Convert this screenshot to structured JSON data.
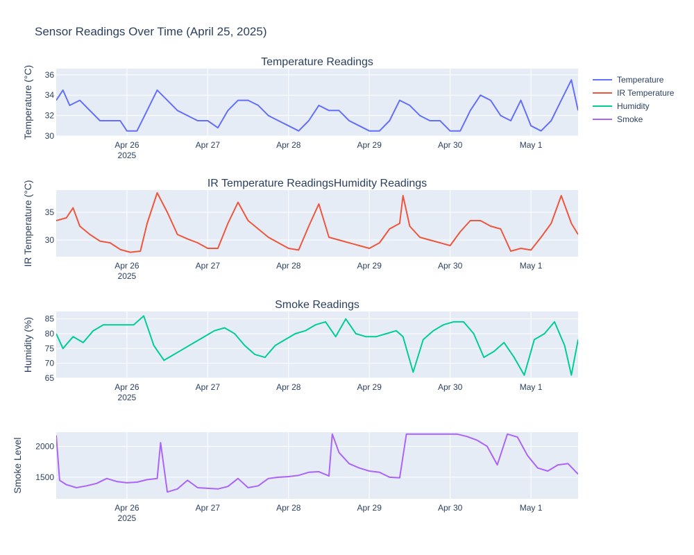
{
  "title": "Sensor Readings Over Time (April 25, 2025)",
  "chart_data": [
    {
      "type": "line",
      "subplot_title": "Temperature Readings",
      "ylabel": "Temperature (°C)",
      "xlabel": "",
      "xlim": [
        "2025-04-25 03:00",
        "2025-05-01 14:00"
      ],
      "ylim": [
        30,
        36.6
      ],
      "yticks": [
        30,
        32,
        34,
        36
      ],
      "xticks": [
        "Apr 26\n2025",
        "Apr 27",
        "Apr 28",
        "Apr 29",
        "Apr 30",
        "May 1"
      ],
      "grid": true,
      "series": [
        {
          "name": "Temperature",
          "color": "#636efa",
          "x": [
            "2025-04-25 03:00",
            "2025-04-25 05:00",
            "2025-04-25 07:00",
            "2025-04-25 10:00",
            "2025-04-25 13:00",
            "2025-04-25 16:00",
            "2025-04-25 19:00",
            "2025-04-25 22:00",
            "2025-04-26 00:00",
            "2025-04-26 03:00",
            "2025-04-26 06:00",
            "2025-04-26 09:00",
            "2025-04-26 12:00",
            "2025-04-26 15:00",
            "2025-04-26 18:00",
            "2025-04-26 21:00",
            "2025-04-27 00:00",
            "2025-04-27 03:00",
            "2025-04-27 06:00",
            "2025-04-27 09:00",
            "2025-04-27 12:00",
            "2025-04-27 15:00",
            "2025-04-27 18:00",
            "2025-04-27 21:00",
            "2025-04-28 00:00",
            "2025-04-28 03:00",
            "2025-04-28 06:00",
            "2025-04-28 09:00",
            "2025-04-28 12:00",
            "2025-04-28 15:00",
            "2025-04-28 18:00",
            "2025-04-28 21:00",
            "2025-04-29 00:00",
            "2025-04-29 03:00",
            "2025-04-29 06:00",
            "2025-04-29 09:00",
            "2025-04-29 12:00",
            "2025-04-29 15:00",
            "2025-04-29 18:00",
            "2025-04-29 21:00",
            "2025-04-30 00:00",
            "2025-04-30 03:00",
            "2025-04-30 06:00",
            "2025-04-30 09:00",
            "2025-04-30 12:00",
            "2025-04-30 15:00",
            "2025-04-30 18:00",
            "2025-04-30 21:00",
            "2025-05-01 00:00",
            "2025-05-01 03:00",
            "2025-05-01 06:00",
            "2025-05-01 09:00",
            "2025-05-01 12:00",
            "2025-05-01 14:00"
          ],
          "y": [
            33.5,
            34.5,
            33.0,
            33.5,
            32.5,
            31.5,
            31.5,
            31.5,
            30.5,
            30.5,
            32.5,
            34.5,
            33.5,
            32.5,
            32.0,
            31.5,
            31.5,
            30.8,
            32.5,
            33.5,
            33.5,
            33.0,
            32.0,
            31.5,
            31.0,
            30.5,
            31.5,
            33.0,
            32.5,
            32.5,
            31.5,
            31.0,
            30.5,
            30.5,
            31.5,
            33.5,
            33.0,
            32.0,
            31.5,
            31.5,
            30.5,
            30.5,
            32.5,
            34.0,
            33.5,
            32.0,
            31.5,
            33.5,
            31.0,
            30.5,
            31.5,
            33.5,
            35.5,
            32.5
          ]
        }
      ]
    },
    {
      "type": "line",
      "subplot_title": "IR Temperature ReadingsHumidity Readings",
      "ylabel": "IR Temperature (°C)",
      "xlabel": "",
      "xlim": [
        "2025-04-25 03:00",
        "2025-05-01 14:00"
      ],
      "ylim": [
        27,
        39
      ],
      "yticks": [
        30,
        35
      ],
      "xticks": [
        "Apr 26\n2025",
        "Apr 27",
        "Apr 28",
        "Apr 29",
        "Apr 30",
        "May 1"
      ],
      "grid": true,
      "series": [
        {
          "name": "IR Temperature",
          "color": "#ef553b",
          "x": [
            "2025-04-25 03:00",
            "2025-04-25 06:00",
            "2025-04-25 08:00",
            "2025-04-25 10:00",
            "2025-04-25 13:00",
            "2025-04-25 16:00",
            "2025-04-25 19:00",
            "2025-04-25 22:00",
            "2025-04-26 01:00",
            "2025-04-26 04:00",
            "2025-04-26 06:00",
            "2025-04-26 09:00",
            "2025-04-26 12:00",
            "2025-04-26 15:00",
            "2025-04-26 18:00",
            "2025-04-26 21:00",
            "2025-04-27 00:00",
            "2025-04-27 03:00",
            "2025-04-27 06:00",
            "2025-04-27 09:00",
            "2025-04-27 12:00",
            "2025-04-27 15:00",
            "2025-04-27 18:00",
            "2025-04-27 21:00",
            "2025-04-28 00:00",
            "2025-04-28 03:00",
            "2025-04-28 06:00",
            "2025-04-28 09:00",
            "2025-04-28 12:00",
            "2025-04-28 15:00",
            "2025-04-28 18:00",
            "2025-04-28 21:00",
            "2025-04-29 00:00",
            "2025-04-29 03:00",
            "2025-04-29 06:00",
            "2025-04-29 09:00",
            "2025-04-29 10:00",
            "2025-04-29 12:00",
            "2025-04-29 15:00",
            "2025-04-29 18:00",
            "2025-04-29 21:00",
            "2025-04-30 00:00",
            "2025-04-30 03:00",
            "2025-04-30 06:00",
            "2025-04-30 09:00",
            "2025-04-30 12:00",
            "2025-04-30 15:00",
            "2025-04-30 18:00",
            "2025-04-30 21:00",
            "2025-05-01 00:00",
            "2025-05-01 03:00",
            "2025-05-01 06:00",
            "2025-05-01 09:00",
            "2025-05-01 12:00",
            "2025-05-01 14:00"
          ],
          "y": [
            33.5,
            34.0,
            35.8,
            32.5,
            31.0,
            29.8,
            29.5,
            28.3,
            27.8,
            28.0,
            33.0,
            38.5,
            35.0,
            31.0,
            30.2,
            29.5,
            28.5,
            28.5,
            33.0,
            36.8,
            33.5,
            32.0,
            30.5,
            29.5,
            28.5,
            28.2,
            32.5,
            36.5,
            30.5,
            30.0,
            29.5,
            29.0,
            28.5,
            29.5,
            32.0,
            33.0,
            38.0,
            32.5,
            30.5,
            30.0,
            29.5,
            29.0,
            31.5,
            33.5,
            33.5,
            32.5,
            32.0,
            28.0,
            28.5,
            28.2,
            30.5,
            33.0,
            38.0,
            33.0,
            31.0
          ]
        }
      ]
    },
    {
      "type": "line",
      "subplot_title": "Smoke Readings",
      "ylabel": "Humidity (%)",
      "xlabel": "",
      "xlim": [
        "2025-04-25 03:00",
        "2025-05-01 14:00"
      ],
      "ylim": [
        65,
        87.5
      ],
      "yticks": [
        65,
        70,
        75,
        80,
        85
      ],
      "xticks": [
        "Apr 26\n2025",
        "Apr 27",
        "Apr 28",
        "Apr 29",
        "Apr 30",
        "May 1"
      ],
      "grid": true,
      "series": [
        {
          "name": "Humidity",
          "color": "#00cc96",
          "x": [
            "2025-04-25 03:00",
            "2025-04-25 05:00",
            "2025-04-25 08:00",
            "2025-04-25 11:00",
            "2025-04-25 14:00",
            "2025-04-25 17:00",
            "2025-04-25 20:00",
            "2025-04-25 23:00",
            "2025-04-26 02:00",
            "2025-04-26 05:00",
            "2025-04-26 08:00",
            "2025-04-26 11:00",
            "2025-04-26 14:00",
            "2025-04-26 17:00",
            "2025-04-26 20:00",
            "2025-04-26 23:00",
            "2025-04-27 02:00",
            "2025-04-27 05:00",
            "2025-04-27 08:00",
            "2025-04-27 11:00",
            "2025-04-27 14:00",
            "2025-04-27 17:00",
            "2025-04-27 20:00",
            "2025-04-27 23:00",
            "2025-04-28 02:00",
            "2025-04-28 05:00",
            "2025-04-28 08:00",
            "2025-04-28 11:00",
            "2025-04-28 14:00",
            "2025-04-28 17:00",
            "2025-04-28 20:00",
            "2025-04-28 23:00",
            "2025-04-29 02:00",
            "2025-04-29 05:00",
            "2025-04-29 08:00",
            "2025-04-29 10:00",
            "2025-04-29 13:00",
            "2025-04-29 16:00",
            "2025-04-29 19:00",
            "2025-04-29 22:00",
            "2025-04-30 01:00",
            "2025-04-30 04:00",
            "2025-04-30 07:00",
            "2025-04-30 10:00",
            "2025-04-30 13:00",
            "2025-04-30 16:00",
            "2025-04-30 19:00",
            "2025-04-30 22:00",
            "2025-05-01 01:00",
            "2025-05-01 04:00",
            "2025-05-01 07:00",
            "2025-05-01 10:00",
            "2025-05-01 12:00",
            "2025-05-01 14:00"
          ],
          "y": [
            80,
            75,
            79,
            77,
            81,
            83,
            83,
            83,
            83,
            86,
            76,
            71,
            73,
            75,
            77,
            79,
            81,
            82,
            80,
            76,
            73,
            72,
            76,
            78,
            80,
            81,
            83,
            84,
            79,
            85,
            80,
            79,
            79,
            80,
            81,
            79,
            67,
            78,
            81,
            83,
            84,
            84,
            80,
            72,
            74,
            77,
            72,
            66,
            78,
            80,
            84,
            76,
            66,
            78
          ]
        }
      ]
    },
    {
      "type": "line",
      "subplot_title": "",
      "ylabel": "Smoke Level",
      "xlabel": "",
      "xlim": [
        "2025-04-25 03:00",
        "2025-05-01 14:00"
      ],
      "ylim": [
        1150,
        2230
      ],
      "yticks": [
        1500,
        2000
      ],
      "xticks": [
        "Apr 26\n2025",
        "Apr 27",
        "Apr 28",
        "Apr 29",
        "Apr 30",
        "May 1"
      ],
      "grid": true,
      "series": [
        {
          "name": "Smoke",
          "color": "#ab63fa",
          "x": [
            "2025-04-25 03:00",
            "2025-04-25 04:00",
            "2025-04-25 06:00",
            "2025-04-25 09:00",
            "2025-04-25 12:00",
            "2025-04-25 15:00",
            "2025-04-25 18:00",
            "2025-04-25 21:00",
            "2025-04-26 00:00",
            "2025-04-26 03:00",
            "2025-04-26 06:00",
            "2025-04-26 09:00",
            "2025-04-26 10:00",
            "2025-04-26 12:00",
            "2025-04-26 15:00",
            "2025-04-26 18:00",
            "2025-04-26 21:00",
            "2025-04-27 00:00",
            "2025-04-27 03:00",
            "2025-04-27 06:00",
            "2025-04-27 09:00",
            "2025-04-27 12:00",
            "2025-04-27 15:00",
            "2025-04-27 18:00",
            "2025-04-27 21:00",
            "2025-04-28 00:00",
            "2025-04-28 03:00",
            "2025-04-28 06:00",
            "2025-04-28 09:00",
            "2025-04-28 12:00",
            "2025-04-28 13:00",
            "2025-04-28 15:00",
            "2025-04-28 18:00",
            "2025-04-28 21:00",
            "2025-04-29 00:00",
            "2025-04-29 03:00",
            "2025-04-29 06:00",
            "2025-04-29 09:00",
            "2025-04-29 11:00",
            "2025-04-29 14:00",
            "2025-04-29 17:00",
            "2025-04-29 20:00",
            "2025-04-29 23:00",
            "2025-04-30 02:00",
            "2025-04-30 05:00",
            "2025-04-30 08:00",
            "2025-04-30 11:00",
            "2025-04-30 14:00",
            "2025-04-30 17:00",
            "2025-04-30 20:00",
            "2025-04-30 23:00",
            "2025-05-01 02:00",
            "2025-05-01 05:00",
            "2025-05-01 08:00",
            "2025-05-01 11:00",
            "2025-05-01 14:00"
          ],
          "y": [
            2180,
            1450,
            1380,
            1330,
            1360,
            1400,
            1480,
            1430,
            1410,
            1420,
            1460,
            1480,
            2060,
            1260,
            1310,
            1450,
            1330,
            1320,
            1310,
            1350,
            1480,
            1330,
            1360,
            1480,
            1500,
            1510,
            1530,
            1580,
            1590,
            1520,
            2200,
            1900,
            1720,
            1650,
            1600,
            1580,
            1500,
            1490,
            2200,
            2200,
            2200,
            2200,
            2200,
            2200,
            2160,
            2100,
            2000,
            1700,
            2200,
            2150,
            1850,
            1650,
            1600,
            1700,
            1720,
            1550
          ]
        }
      ]
    }
  ],
  "legend": [
    {
      "label": "Temperature",
      "color": "#636efa"
    },
    {
      "label": "IR Temperature",
      "color": "#ef553b"
    },
    {
      "label": "Humidity",
      "color": "#00cc96"
    },
    {
      "label": "Smoke",
      "color": "#ab63fa"
    }
  ],
  "year_label": "2025"
}
